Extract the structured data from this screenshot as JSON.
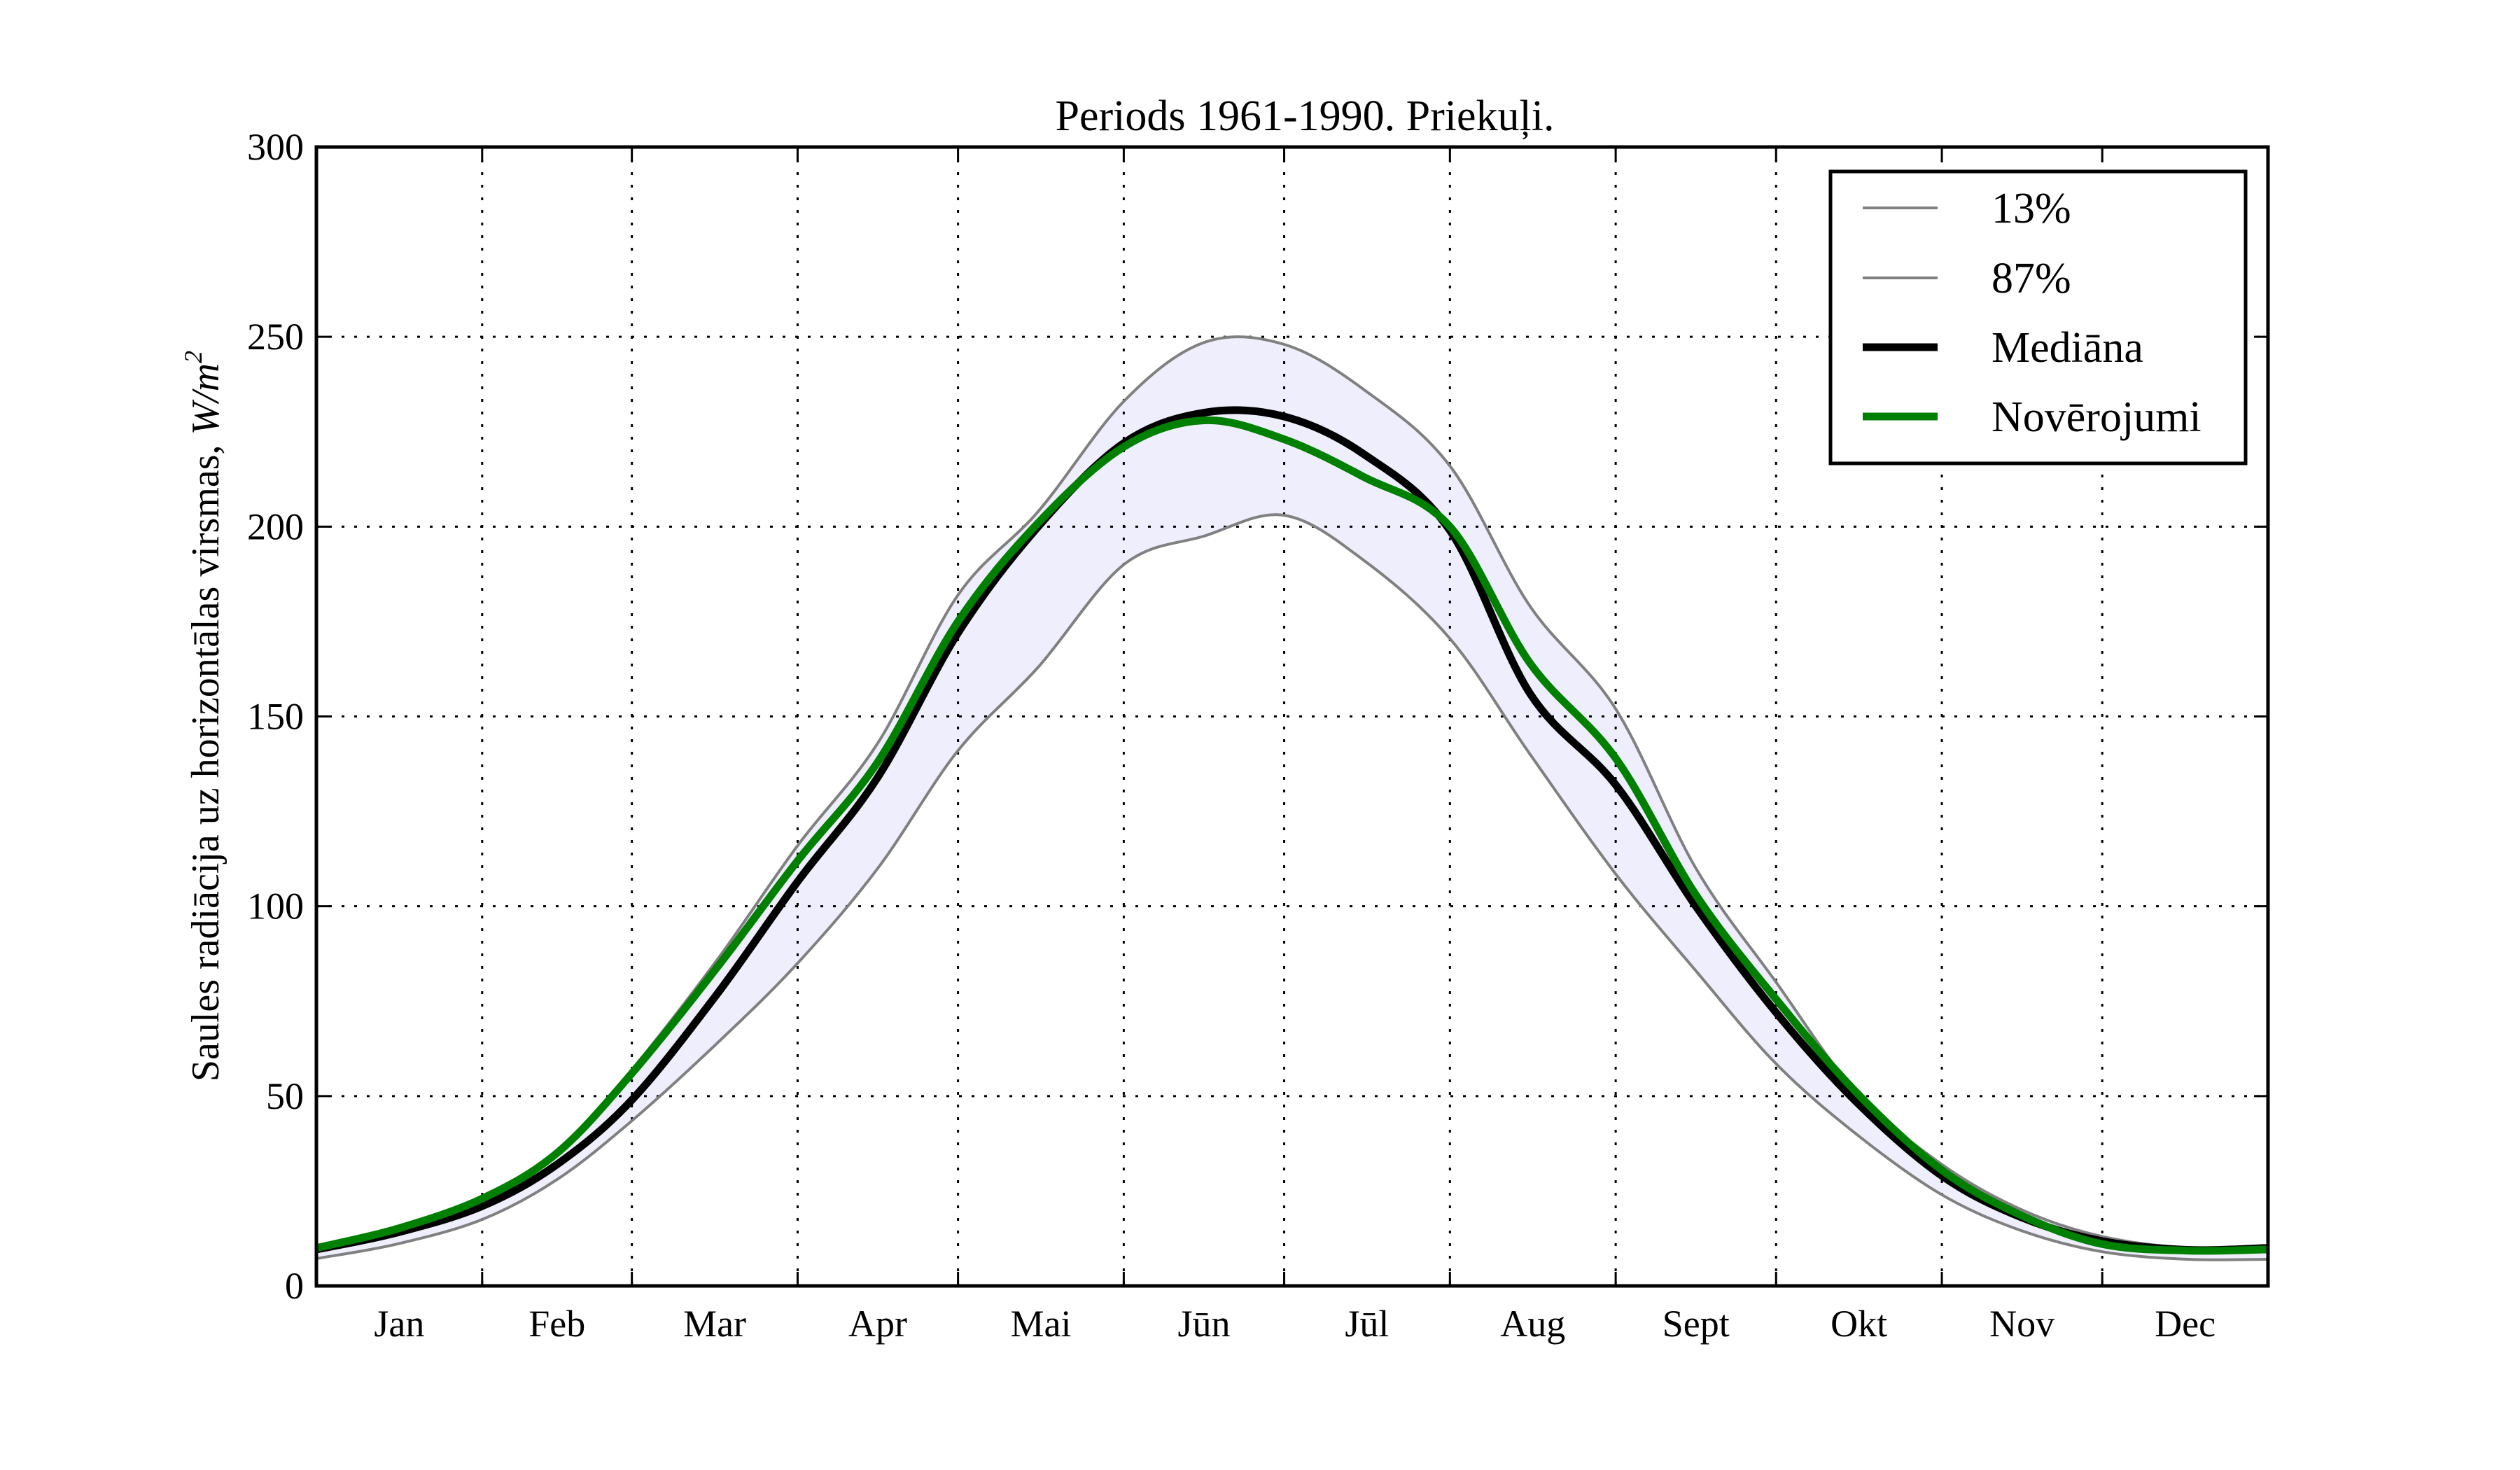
{
  "chart_data": {
    "type": "line",
    "title": "Periods 1961-1990. Priekuļi.",
    "xlabel": "",
    "ylabel": "Saules radiācija uz horizontālas virsmas, W/m²",
    "ylabel_main": "Saules radiācija uz horizontālas virsmas, ",
    "ylabel_unit": "W/m",
    "ylabel_unit_exp": "2",
    "xlim": [
      0,
      365
    ],
    "ylim": [
      0,
      300
    ],
    "yticks": [
      0,
      50,
      100,
      150,
      200,
      250,
      300
    ],
    "ytick_labels": [
      "0",
      "50",
      "100",
      "150",
      "200",
      "250",
      "300"
    ],
    "month_boundaries": [
      0,
      31,
      59,
      90,
      120,
      151,
      181,
      212,
      243,
      273,
      304,
      334,
      365
    ],
    "month_labels": [
      "Jan",
      "Feb",
      "Mar",
      "Apr",
      "Mai",
      "Jūn",
      "Jūl",
      "Aug",
      "Sept",
      "Okt",
      "Nov",
      "Dec"
    ],
    "grid": true,
    "legend_position": "top-right",
    "band_fill": "#eeeefc",
    "x": [
      0,
      15,
      31,
      45,
      59,
      75,
      90,
      105,
      120,
      135,
      151,
      166,
      181,
      196,
      212,
      227,
      243,
      258,
      273,
      288,
      304,
      319,
      334,
      350,
      365
    ],
    "series": [
      {
        "name": "13%",
        "color": "#808080",
        "width": "thin",
        "values": [
          7.2,
          11,
          17.5,
          28,
          43.5,
          64,
          85,
          110,
          141,
          163,
          190,
          197.5,
          203,
          191,
          170.5,
          140,
          108.5,
          83,
          58.5,
          40,
          24,
          14.5,
          9,
          7,
          7
        ]
      },
      {
        "name": "87%",
        "color": "#808080",
        "width": "thin",
        "values": [
          10,
          15,
          23,
          35,
          57,
          86,
          116,
          143,
          182,
          204,
          233,
          248.5,
          248,
          236,
          216,
          179,
          152,
          110,
          80,
          51,
          32,
          20,
          13,
          10,
          10
        ]
      },
      {
        "name": "Mediāna",
        "color": "#000000",
        "width": "thick",
        "values": [
          9.6,
          14,
          21,
          32,
          49,
          77,
          106.5,
          134,
          172,
          200,
          222,
          230,
          229,
          219,
          199,
          156,
          132,
          100,
          72,
          48.5,
          29,
          18,
          11.8,
          9.5,
          10
        ]
      },
      {
        "name": "Novērojumi",
        "color": "#008000",
        "width": "thick",
        "values": [
          10,
          15,
          23,
          35,
          56,
          84,
          112,
          138,
          175,
          201,
          221,
          228,
          223,
          213,
          200,
          164,
          139,
          103,
          75.5,
          51,
          30.5,
          18.5,
          11,
          9.3,
          9.6
        ]
      }
    ]
  }
}
